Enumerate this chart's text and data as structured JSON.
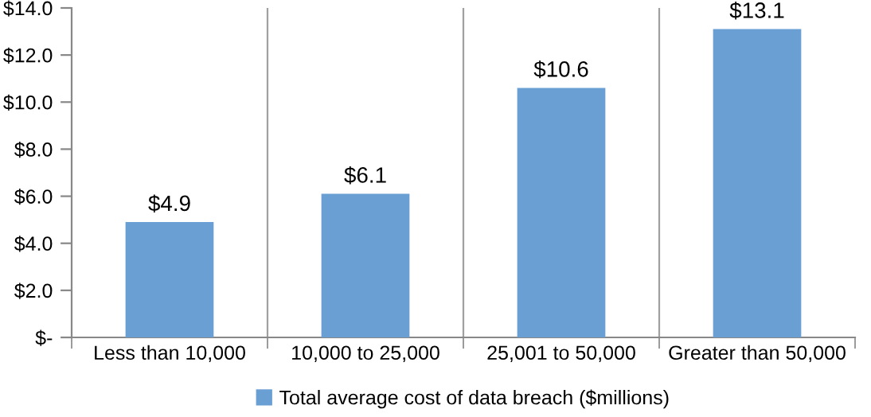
{
  "chart_data": {
    "type": "bar",
    "categories": [
      "Less than 10,000",
      "10,000 to 25,000",
      "25,001 to 50,000",
      "Greater than 50,000"
    ],
    "series": [
      {
        "name": "Total average cost of data breach ($millions)",
        "color": "#6a9fd4",
        "values": [
          4.9,
          6.1,
          10.6,
          13.1
        ],
        "value_labels": [
          "$4.9",
          "$6.1",
          "$10.6",
          "$13.1"
        ]
      }
    ],
    "ylim": [
      0,
      14
    ],
    "yticks": [
      {
        "value": 0,
        "label": "$-"
      },
      {
        "value": 2,
        "label": "$2.0"
      },
      {
        "value": 4,
        "label": "$4.0"
      },
      {
        "value": 6,
        "label": "$6.0"
      },
      {
        "value": 8,
        "label": "$8.0"
      },
      {
        "value": 10,
        "label": "$10.0"
      },
      {
        "value": 12,
        "label": "$12.0"
      },
      {
        "value": 14,
        "label": "$14.0"
      }
    ],
    "grid": "x",
    "legend": "bottom"
  }
}
